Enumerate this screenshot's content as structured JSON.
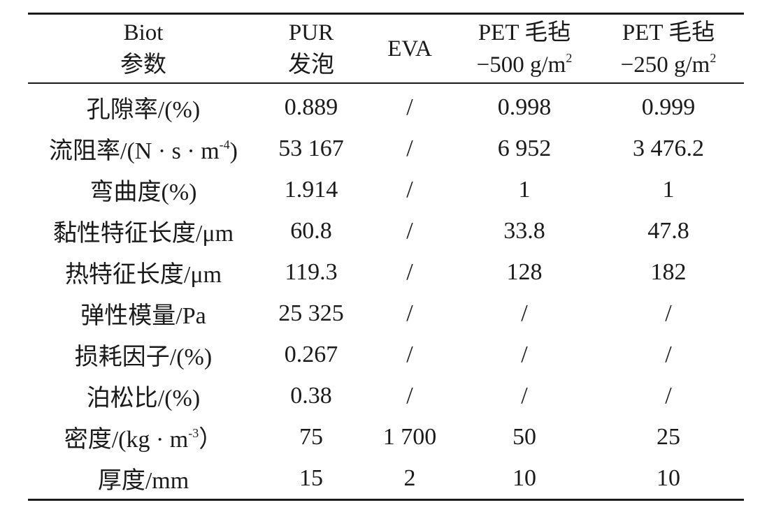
{
  "table": {
    "headers": [
      {
        "line1": "Biot",
        "line2": "参数",
        "sup": ""
      },
      {
        "line1": "PUR",
        "line2": "发泡",
        "sup": ""
      },
      {
        "line1": "EVA",
        "line2": "",
        "sup": ""
      },
      {
        "line1": "PET 毛毡",
        "line2": "−500 g/m",
        "sup": "2"
      },
      {
        "line1": "PET 毛毡",
        "line2": "−250 g/m",
        "sup": "2"
      }
    ],
    "rows": [
      {
        "label": "孔隙率/(%)",
        "label_sup": "",
        "label_tail": "",
        "values": [
          "0.889",
          "/",
          "0.998",
          "0.999"
        ]
      },
      {
        "label": "流阻率/(N · s · m",
        "label_sup": "-4",
        "label_tail": ")",
        "values": [
          "53 167",
          "/",
          "6 952",
          "3 476.2"
        ]
      },
      {
        "label": "弯曲度(%)",
        "label_sup": "",
        "label_tail": "",
        "values": [
          "1.914",
          "/",
          "1",
          "1"
        ]
      },
      {
        "label": "黏性特征长度/μm",
        "label_sup": "",
        "label_tail": "",
        "values": [
          "60.8",
          "/",
          "33.8",
          "47.8"
        ]
      },
      {
        "label": "热特征长度/μm",
        "label_sup": "",
        "label_tail": "",
        "values": [
          "119.3",
          "/",
          "128",
          "182"
        ]
      },
      {
        "label": "弹性模量/Pa",
        "label_sup": "",
        "label_tail": "",
        "values": [
          "25 325",
          "/",
          "/",
          "/"
        ]
      },
      {
        "label": "损耗因子/(%)",
        "label_sup": "",
        "label_tail": "",
        "values": [
          "0.267",
          "/",
          "/",
          "/"
        ]
      },
      {
        "label": "泊松比/(%)",
        "label_sup": "",
        "label_tail": "",
        "values": [
          "0.38",
          "/",
          "/",
          "/"
        ]
      },
      {
        "label": "密度/(kg · m",
        "label_sup": "-3",
        "label_tail": "）",
        "values": [
          "75",
          "1 700",
          "50",
          "25"
        ]
      },
      {
        "label": "厚度/mm",
        "label_sup": "",
        "label_tail": "",
        "values": [
          "15",
          "2",
          "10",
          "10"
        ]
      }
    ]
  }
}
